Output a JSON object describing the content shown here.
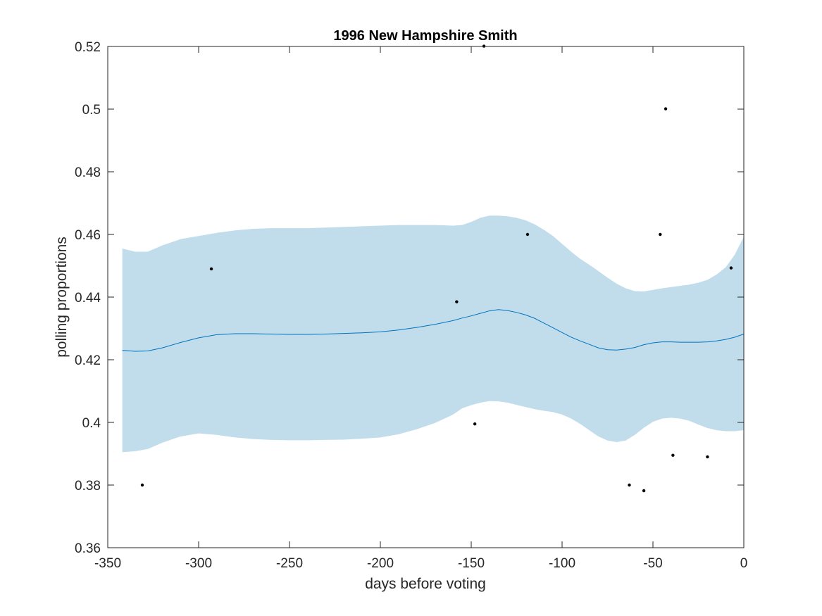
{
  "chart_data": {
    "type": "line",
    "title": "1996 New Hampshire Smith",
    "xlabel": "days before voting",
    "ylabel": "polling proportions",
    "xlim": [
      -350,
      0
    ],
    "ylim": [
      0.36,
      0.52
    ],
    "xticks": [
      -350,
      -300,
      -250,
      -200,
      -150,
      -100,
      -50,
      0
    ],
    "xtick_labels": [
      "-350",
      "-300",
      "-250",
      "-200",
      "-150",
      "-100",
      "-50",
      "0"
    ],
    "yticks": [
      0.36,
      0.38,
      0.4,
      0.42,
      0.44,
      0.46,
      0.48,
      0.5,
      0.52
    ],
    "ytick_labels": [
      "0.36",
      "0.38",
      "0.4",
      "0.42",
      "0.44",
      "0.46",
      "0.48",
      "0.5",
      "0.52"
    ],
    "grid": false,
    "colors": {
      "mean_line": "#0072BD",
      "band_fill": "#C1DDEC",
      "points": "#000000",
      "axes": "#262626"
    },
    "band": {
      "x": [
        -342,
        -335,
        -328,
        -320,
        -310,
        -300,
        -290,
        -280,
        -270,
        -260,
        -250,
        -240,
        -230,
        -220,
        -210,
        -200,
        -190,
        -180,
        -170,
        -160,
        -155,
        -150,
        -145,
        -140,
        -135,
        -130,
        -125,
        -120,
        -115,
        -110,
        -105,
        -100,
        -95,
        -90,
        -85,
        -80,
        -75,
        -70,
        -65,
        -60,
        -55,
        -50,
        -45,
        -40,
        -35,
        -30,
        -25,
        -20,
        -15,
        -10,
        -5,
        0
      ],
      "upper": [
        0.4555,
        0.4545,
        0.4545,
        0.4565,
        0.4585,
        0.4595,
        0.4605,
        0.4613,
        0.4618,
        0.462,
        0.462,
        0.462,
        0.4622,
        0.4624,
        0.4626,
        0.4628,
        0.463,
        0.463,
        0.463,
        0.4628,
        0.463,
        0.464,
        0.4653,
        0.466,
        0.466,
        0.4658,
        0.4653,
        0.4645,
        0.4632,
        0.4615,
        0.4595,
        0.457,
        0.4545,
        0.4522,
        0.4503,
        0.4483,
        0.4462,
        0.4443,
        0.4428,
        0.4419,
        0.4418,
        0.4423,
        0.4428,
        0.4432,
        0.4436,
        0.444,
        0.4446,
        0.4455,
        0.4472,
        0.4495,
        0.4535,
        0.4593
      ],
      "lower": [
        0.3905,
        0.3908,
        0.3915,
        0.3935,
        0.3955,
        0.3965,
        0.396,
        0.3952,
        0.3947,
        0.3944,
        0.3943,
        0.3943,
        0.3944,
        0.3945,
        0.3948,
        0.3952,
        0.3962,
        0.3978,
        0.3998,
        0.4025,
        0.4045,
        0.4055,
        0.4063,
        0.4068,
        0.4067,
        0.4063,
        0.4056,
        0.4049,
        0.4042,
        0.4037,
        0.4033,
        0.4025,
        0.4012,
        0.3995,
        0.3975,
        0.3955,
        0.3942,
        0.3937,
        0.3942,
        0.396,
        0.3983,
        0.4002,
        0.4012,
        0.4015,
        0.4012,
        0.4005,
        0.3993,
        0.3982,
        0.3975,
        0.3972,
        0.3972,
        0.3975
      ]
    },
    "mean_line": {
      "x": [
        -342,
        -335,
        -328,
        -320,
        -310,
        -300,
        -290,
        -280,
        -270,
        -260,
        -250,
        -240,
        -230,
        -220,
        -210,
        -200,
        -190,
        -180,
        -170,
        -160,
        -155,
        -150,
        -145,
        -140,
        -135,
        -130,
        -125,
        -120,
        -115,
        -110,
        -105,
        -100,
        -95,
        -90,
        -85,
        -80,
        -75,
        -70,
        -65,
        -60,
        -55,
        -50,
        -45,
        -40,
        -35,
        -30,
        -25,
        -20,
        -15,
        -10,
        -5,
        0
      ],
      "y": [
        0.423,
        0.4227,
        0.4228,
        0.4238,
        0.4255,
        0.427,
        0.428,
        0.4283,
        0.4283,
        0.4282,
        0.4281,
        0.4281,
        0.4282,
        0.4284,
        0.4286,
        0.4289,
        0.4295,
        0.4303,
        0.4313,
        0.4325,
        0.4333,
        0.434,
        0.4348,
        0.4356,
        0.436,
        0.4357,
        0.4351,
        0.4343,
        0.4332,
        0.4317,
        0.4302,
        0.4287,
        0.4272,
        0.426,
        0.4249,
        0.4238,
        0.4232,
        0.4231,
        0.4234,
        0.4239,
        0.4248,
        0.4254,
        0.4257,
        0.4257,
        0.4256,
        0.4256,
        0.4256,
        0.4257,
        0.426,
        0.4265,
        0.4272,
        0.4282
      ]
    },
    "points": {
      "x": [
        -331,
        -293,
        -158,
        -148,
        -143,
        -119,
        -63,
        -55,
        -46,
        -43,
        -39,
        -20,
        -7
      ],
      "y": [
        0.38,
        0.449,
        0.4385,
        0.3995,
        0.5201,
        0.46,
        0.38,
        0.3782,
        0.46,
        0.5001,
        0.3895,
        0.389,
        0.4493
      ]
    }
  }
}
